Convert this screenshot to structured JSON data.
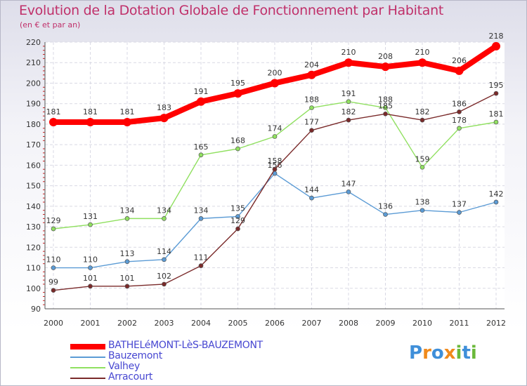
{
  "chart_data": {
    "type": "line",
    "title": "Evolution de la Dotation Globale de Fonctionnement par Habitant",
    "subtitle": "(en € et par an)",
    "xlabel": "",
    "ylabel": "",
    "x": [
      "2000",
      "2001",
      "2002",
      "2003",
      "2004",
      "2005",
      "2006",
      "2007",
      "2008",
      "2009",
      "2010",
      "2011",
      "2012"
    ],
    "ylim": [
      90,
      220
    ],
    "yticks": [
      90,
      100,
      110,
      120,
      130,
      140,
      150,
      160,
      170,
      180,
      190,
      200,
      210,
      220
    ],
    "grid": true,
    "legend_position": "bottom-left",
    "series": [
      {
        "name": "BATHELéMONT-LèS-BAUZEMONT",
        "color": "#ff0000",
        "values": [
          181,
          181,
          181,
          183,
          191,
          195,
          200,
          204,
          210,
          208,
          210,
          206,
          218
        ],
        "style": "thick"
      },
      {
        "name": "Bauzemont",
        "color": "#5b9bd5",
        "values": [
          110,
          110,
          113,
          114,
          134,
          135,
          156,
          144,
          147,
          136,
          138,
          137,
          142
        ],
        "style": "thin"
      },
      {
        "name": "Valhey",
        "color": "#90e060",
        "values": [
          129,
          131,
          134,
          134,
          165,
          168,
          174,
          188,
          191,
          188,
          159,
          178,
          181
        ],
        "style": "thin"
      },
      {
        "name": "Arracourt",
        "color": "#7a2a2a",
        "values": [
          99,
          101,
          101,
          102,
          111,
          129,
          158,
          177,
          182,
          185,
          182,
          186,
          195
        ],
        "style": "thin"
      }
    ]
  },
  "brand": {
    "name": "Proxiti",
    "colors": [
      "#3f8fd9",
      "#f08a1c",
      "#6ab93a"
    ]
  }
}
